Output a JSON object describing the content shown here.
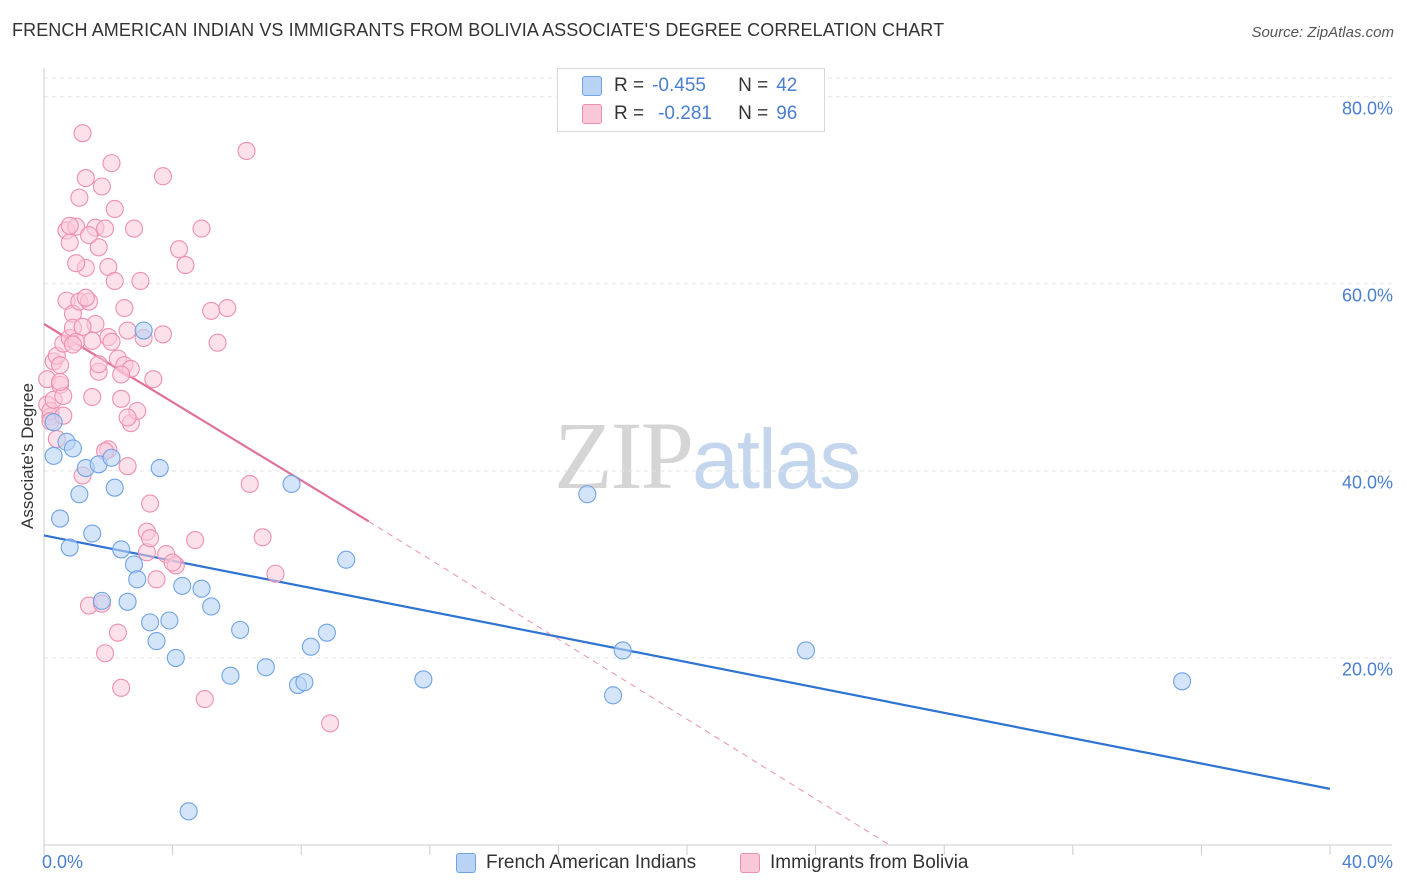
{
  "title": "FRENCH AMERICAN INDIAN VS IMMIGRANTS FROM BOLIVIA ASSOCIATE'S DEGREE CORRELATION CHART",
  "source": "Source: ZipAtlas.com",
  "watermark": {
    "zip": "ZIP",
    "atlas": "atlas"
  },
  "legend": {
    "rows": [
      {
        "r_label": "R =",
        "r_value": "-0.455",
        "n_label": "N =",
        "n_value": "42"
      },
      {
        "r_label": "R =",
        "r_value": "-0.281",
        "n_label": "N =",
        "n_value": "96"
      }
    ]
  },
  "colors": {
    "blue": "#6fa3e6",
    "blue_fill": "#b9d3f5",
    "blue_line": "#2f74d0",
    "pink": "#ef8fb0",
    "pink_fill": "#f9c8d8",
    "pink_line": "#e07099",
    "axis_label": "#4a7fcf",
    "grid": "#e3e3e3"
  },
  "chart_data": {
    "type": "scatter",
    "title": "FRENCH AMERICAN INDIAN VS IMMIGRANTS FROM BOLIVIA ASSOCIATE'S DEGREE CORRELATION CHART",
    "xlabel": "",
    "ylabel": "Associate's Degree",
    "xlim": [
      0,
      40
    ],
    "ylim": [
      0,
      82
    ],
    "x_tick_labels": [
      "0.0%",
      "40.0%"
    ],
    "y_tick_labels": [
      {
        "value": 20,
        "label": "20.0%"
      },
      {
        "value": 40,
        "label": "40.0%"
      },
      {
        "value": 60,
        "label": "60.0%"
      },
      {
        "value": 80,
        "label": "80.0%"
      }
    ],
    "grid": true,
    "legend_position": "bottom-center",
    "series": [
      {
        "name": "French American Indians",
        "color": "blue",
        "r": -0.455,
        "n": 42,
        "trend": {
          "x": [
            0,
            40
          ],
          "y": [
            33.1,
            6.0
          ]
        },
        "points": [
          [
            0.3,
            45.2
          ],
          [
            0.3,
            41.6
          ],
          [
            0.5,
            34.9
          ],
          [
            0.7,
            43.1
          ],
          [
            0.8,
            31.8
          ],
          [
            0.9,
            42.4
          ],
          [
            1.1,
            37.5
          ],
          [
            1.3,
            40.3
          ],
          [
            1.5,
            33.3
          ],
          [
            1.7,
            40.7
          ],
          [
            1.8,
            26.1
          ],
          [
            2.1,
            41.4
          ],
          [
            2.2,
            38.2
          ],
          [
            2.4,
            31.6
          ],
          [
            2.6,
            26.0
          ],
          [
            2.8,
            30.0
          ],
          [
            2.9,
            28.4
          ],
          [
            3.1,
            55.0
          ],
          [
            3.3,
            23.8
          ],
          [
            3.5,
            21.8
          ],
          [
            3.6,
            40.3
          ],
          [
            3.9,
            24.0
          ],
          [
            4.1,
            20.0
          ],
          [
            4.3,
            27.7
          ],
          [
            4.5,
            3.6
          ],
          [
            4.9,
            27.4
          ],
          [
            5.2,
            25.5
          ],
          [
            5.8,
            18.1
          ],
          [
            6.1,
            23.0
          ],
          [
            6.9,
            19.0
          ],
          [
            7.7,
            38.6
          ],
          [
            7.9,
            17.1
          ],
          [
            8.1,
            17.4
          ],
          [
            8.3,
            21.2
          ],
          [
            8.8,
            22.7
          ],
          [
            9.4,
            30.5
          ],
          [
            11.8,
            17.7
          ],
          [
            16.9,
            37.5
          ],
          [
            17.7,
            16.0
          ],
          [
            18.0,
            20.8
          ],
          [
            23.7,
            20.8
          ],
          [
            35.4,
            17.5
          ]
        ]
      },
      {
        "name": "Immigrants from Bolivia",
        "color": "pink",
        "r": -0.281,
        "n": 96,
        "trend": {
          "x": [
            0,
            10.1
          ],
          "y": [
            55.7,
            34.6
          ]
        },
        "trend_extension": {
          "x": [
            10.1,
            26.3
          ],
          "y": [
            34.6,
            0.0
          ]
        },
        "points": [
          [
            0.1,
            47.1
          ],
          [
            0.1,
            49.8
          ],
          [
            0.2,
            45.8
          ],
          [
            0.2,
            46.4
          ],
          [
            0.3,
            51.7
          ],
          [
            0.3,
            47.6
          ],
          [
            0.4,
            52.3
          ],
          [
            0.4,
            43.4
          ],
          [
            0.5,
            49.2
          ],
          [
            0.5,
            51.3
          ],
          [
            0.6,
            48.0
          ],
          [
            0.6,
            53.6
          ],
          [
            0.7,
            65.7
          ],
          [
            0.7,
            58.2
          ],
          [
            0.8,
            64.4
          ],
          [
            0.8,
            54.2
          ],
          [
            0.9,
            56.8
          ],
          [
            0.9,
            55.3
          ],
          [
            1.0,
            53.8
          ],
          [
            1.0,
            66.1
          ],
          [
            1.1,
            58.1
          ],
          [
            1.1,
            69.2
          ],
          [
            1.2,
            76.1
          ],
          [
            1.2,
            39.5
          ],
          [
            1.3,
            71.3
          ],
          [
            1.3,
            61.7
          ],
          [
            1.4,
            58.1
          ],
          [
            1.4,
            25.6
          ],
          [
            1.5,
            47.9
          ],
          [
            1.5,
            53.9
          ],
          [
            1.6,
            66.0
          ],
          [
            1.6,
            55.7
          ],
          [
            1.7,
            63.9
          ],
          [
            1.7,
            50.6
          ],
          [
            1.8,
            70.4
          ],
          [
            1.8,
            25.8
          ],
          [
            1.9,
            65.9
          ],
          [
            1.9,
            20.5
          ],
          [
            2.0,
            54.3
          ],
          [
            2.0,
            61.8
          ],
          [
            2.1,
            72.9
          ],
          [
            2.1,
            53.8
          ],
          [
            2.2,
            60.3
          ],
          [
            2.2,
            68.0
          ],
          [
            2.3,
            52.0
          ],
          [
            2.3,
            22.7
          ],
          [
            2.4,
            47.7
          ],
          [
            2.4,
            16.8
          ],
          [
            2.5,
            57.4
          ],
          [
            2.5,
            51.3
          ],
          [
            2.6,
            40.5
          ],
          [
            2.6,
            55.0
          ],
          [
            2.7,
            45.1
          ],
          [
            2.7,
            50.9
          ],
          [
            2.8,
            65.9
          ],
          [
            2.9,
            46.4
          ],
          [
            3.0,
            60.3
          ],
          [
            3.1,
            54.2
          ],
          [
            3.2,
            33.5
          ],
          [
            3.2,
            31.3
          ],
          [
            3.3,
            32.8
          ],
          [
            3.4,
            49.8
          ],
          [
            3.5,
            28.4
          ],
          [
            3.7,
            54.6
          ],
          [
            3.7,
            71.5
          ],
          [
            3.8,
            31.1
          ],
          [
            4.1,
            29.9
          ],
          [
            4.2,
            63.7
          ],
          [
            4.4,
            62.0
          ],
          [
            4.7,
            32.6
          ],
          [
            4.9,
            65.9
          ],
          [
            5.0,
            15.6
          ],
          [
            5.4,
            53.7
          ],
          [
            5.7,
            57.4
          ],
          [
            6.3,
            74.2
          ],
          [
            6.4,
            38.6
          ],
          [
            6.8,
            32.9
          ],
          [
            7.2,
            29.0
          ],
          [
            8.9,
            13.0
          ],
          [
            0.2,
            45.3
          ],
          [
            0.5,
            49.5
          ],
          [
            0.9,
            53.5
          ],
          [
            1.3,
            58.5
          ],
          [
            0.6,
            45.9
          ],
          [
            2.0,
            42.3
          ],
          [
            2.6,
            45.7
          ],
          [
            1.9,
            42.1
          ],
          [
            3.3,
            36.5
          ],
          [
            4.0,
            30.2
          ],
          [
            5.2,
            57.1
          ],
          [
            1.7,
            51.4
          ],
          [
            2.4,
            50.3
          ],
          [
            1.4,
            65.2
          ],
          [
            0.8,
            66.2
          ],
          [
            1.0,
            62.2
          ],
          [
            1.2,
            55.4
          ]
        ]
      }
    ]
  },
  "bottom_legend": [
    {
      "label": "French American Indians"
    },
    {
      "label": "Immigrants from Bolivia"
    }
  ]
}
